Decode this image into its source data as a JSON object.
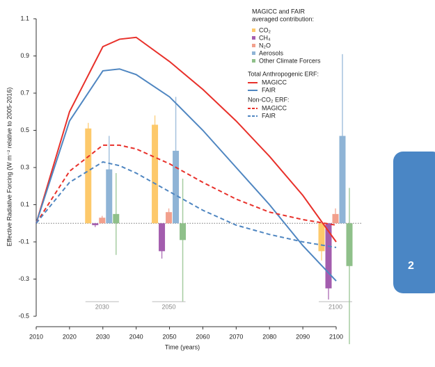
{
  "chart_data": {
    "type": "line",
    "x_label": "Time (years)",
    "y_label": "Effective Radiative Forcing (W m⁻² relative to 2005-2016)",
    "x": [
      2010,
      2020,
      2030,
      2035,
      2040,
      2050,
      2060,
      2070,
      2080,
      2090,
      2100
    ],
    "xlim": [
      2010,
      2100
    ],
    "xticks": [
      2010,
      2020,
      2030,
      2040,
      2050,
      2060,
      2070,
      2080,
      2090,
      2100
    ],
    "ylim": [
      -0.5,
      1.1
    ],
    "yticks": [
      -0.5,
      -0.3,
      -0.1,
      0.1,
      0.3,
      0.5,
      0.7,
      0.9,
      1.1
    ],
    "zero_line": true,
    "series_groups": [
      {
        "title": "Total Anthropogenic ERF:",
        "series": [
          {
            "name": "MAGICC",
            "color": "#e8302a",
            "dash": false,
            "values": [
              0,
              0.6,
              0.95,
              0.99,
              1.0,
              0.87,
              0.72,
              0.55,
              0.36,
              0.15,
              -0.1
            ]
          },
          {
            "name": "FAIR",
            "color": "#4f86c1",
            "dash": false,
            "values": [
              0,
              0.55,
              0.82,
              0.83,
              0.8,
              0.68,
              0.5,
              0.3,
              0.1,
              -0.12,
              -0.31
            ]
          }
        ]
      },
      {
        "title": "Non-CO₂ ERF:",
        "series": [
          {
            "name": "MAGICC",
            "color": "#e8302a",
            "dash": true,
            "values": [
              0,
              0.28,
              0.42,
              0.42,
              0.4,
              0.32,
              0.22,
              0.13,
              0.06,
              0.02,
              -0.01
            ]
          },
          {
            "name": "FAIR",
            "color": "#4f86c1",
            "dash": true,
            "values": [
              0,
              0.22,
              0.33,
              0.31,
              0.27,
              0.17,
              0.07,
              -0.01,
              -0.06,
              -0.1,
              -0.13
            ]
          }
        ]
      }
    ],
    "bars": {
      "legend_title": [
        "MAGICC and FAIR",
        "averaged contribution:"
      ],
      "groups": [
        "2030",
        "2050",
        "2100"
      ],
      "series": [
        {
          "name": "CO₂",
          "color": "#fdc96b",
          "values": [
            0.51,
            0.53,
            -0.15
          ],
          "errors": [
            0.03,
            0.05,
            0.05
          ]
        },
        {
          "name": "CH₄",
          "color": "#a35dae",
          "values": [
            -0.01,
            -0.15,
            -0.35
          ],
          "errors": [
            0.01,
            0.04,
            0.06
          ]
        },
        {
          "name": "N₂O",
          "color": "#f2a08d",
          "values": [
            0.03,
            0.06,
            0.05
          ],
          "errors": [
            0.01,
            0.02,
            0.03
          ]
        },
        {
          "name": "Aerosols",
          "color": "#8fb4d6",
          "values": [
            0.29,
            0.39,
            0.47
          ],
          "errors": [
            0.18,
            0.29,
            0.44
          ]
        },
        {
          "name": "Other Climate Forcers",
          "color": "#8fc08a",
          "values": [
            0.05,
            -0.09,
            -0.23
          ],
          "errors": [
            0.22,
            0.33,
            0.42
          ]
        }
      ]
    }
  },
  "side_tab": {
    "label": "2"
  }
}
